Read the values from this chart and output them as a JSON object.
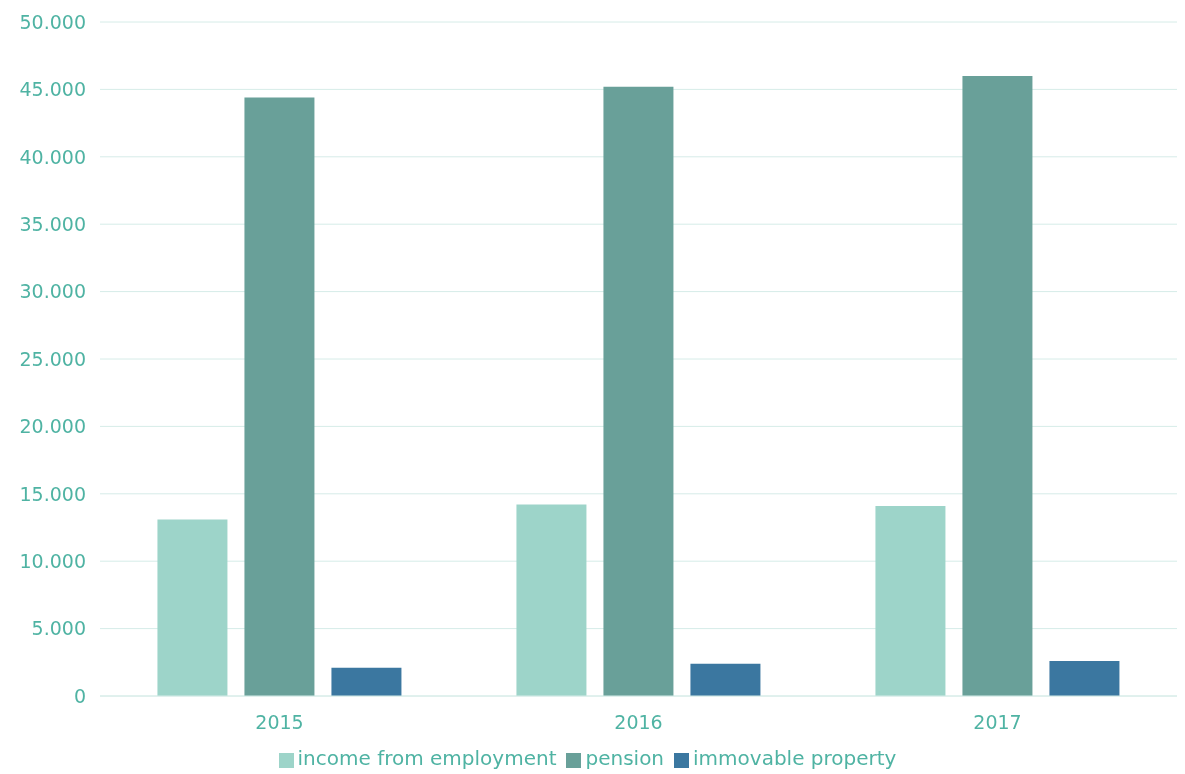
{
  "chart_data": {
    "type": "bar",
    "categories": [
      "2015",
      "2016",
      "2017"
    ],
    "series": [
      {
        "name": "income from employment",
        "color": "#9dd4c9",
        "values": [
          13100,
          14200,
          14100
        ]
      },
      {
        "name": "pension",
        "color": "#69a099",
        "values": [
          44400,
          45200,
          46000
        ]
      },
      {
        "name": "immovable property",
        "color": "#3b77a0",
        "values": [
          2100,
          2400,
          2600
        ]
      }
    ],
    "ylim": [
      0,
      50000
    ],
    "yticks": [
      0,
      {
        "value": 5000,
        "label": "5.000"
      },
      {
        "value": 10000,
        "label": "10.000"
      },
      {
        "value": 15000,
        "label": "15.000"
      },
      {
        "value": 20000,
        "label": "20.000"
      },
      {
        "value": 25000,
        "label": "25.000"
      },
      {
        "value": 30000,
        "label": "30.000"
      },
      {
        "value": 35000,
        "label": "35.000"
      },
      {
        "value": 40000,
        "label": "40.000"
      },
      {
        "value": 45000,
        "label": "45.000"
      },
      {
        "value": 50000,
        "label": "50.000"
      }
    ],
    "grid": "y",
    "legend": "bottom"
  }
}
